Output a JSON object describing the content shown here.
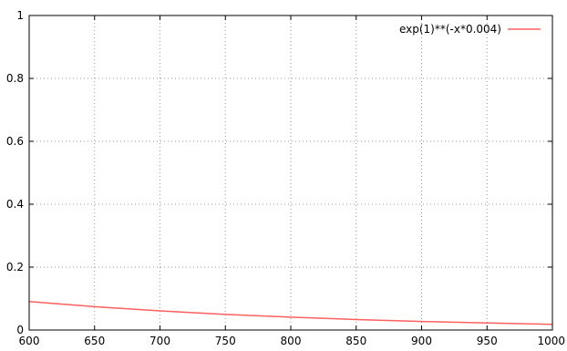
{
  "chart_data": {
    "type": "line",
    "title": "",
    "xlabel": "",
    "ylabel": "",
    "xlim": [
      600,
      1000
    ],
    "ylim": [
      0,
      1
    ],
    "x_ticks": [
      600,
      650,
      700,
      750,
      800,
      850,
      900,
      950,
      1000
    ],
    "x_tick_labels": [
      "600",
      "650",
      "700",
      "750",
      "800",
      "850",
      "900",
      "950",
      "1000"
    ],
    "y_ticks": [
      0,
      0.2,
      0.4,
      0.6,
      0.8,
      1
    ],
    "y_tick_labels": [
      "0",
      "0.2",
      "0.4",
      "0.6",
      "0.8",
      "1"
    ],
    "grid": true,
    "legend_position": "top-right",
    "series": [
      {
        "name": "exp(1)**(-x*0.004)",
        "color": "#ff6060",
        "x": [
          600,
          650,
          700,
          750,
          800,
          850,
          900,
          950,
          1000
        ],
        "y": [
          0.0907,
          0.0743,
          0.0608,
          0.0498,
          0.0408,
          0.0334,
          0.0273,
          0.0224,
          0.0183
        ]
      }
    ]
  }
}
